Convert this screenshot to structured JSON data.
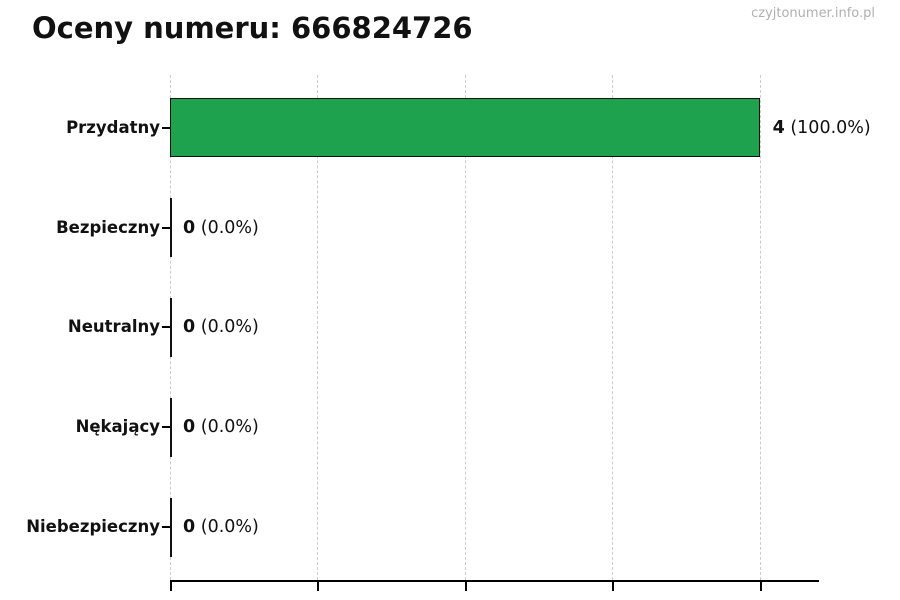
{
  "header": {
    "title": "Oceny numeru: 666824726",
    "watermark": "czyjtonumer.info.pl"
  },
  "chart_data": {
    "type": "bar",
    "orientation": "horizontal",
    "title": "Oceny numeru: 666824726",
    "categories": [
      "Przydatny",
      "Bezpieczny",
      "Neutralny",
      "Nękający",
      "Niebezpieczny"
    ],
    "values": [
      4,
      0,
      0,
      0,
      0
    ],
    "value_labels": [
      {
        "count": "4",
        "pct": "(100.0%)"
      },
      {
        "count": "0",
        "pct": "(0.0%)"
      },
      {
        "count": "0",
        "pct": "(0.0%)"
      },
      {
        "count": "0",
        "pct": "(0.0%)"
      },
      {
        "count": "0",
        "pct": "(0.0%)"
      }
    ],
    "xlabel": "",
    "ylabel": "",
    "xlim": [
      0,
      4.4
    ],
    "x_ticks": [
      0,
      1,
      2,
      3,
      4
    ],
    "x_tick_labels_visible": false,
    "grid": "vertical-dashed",
    "legend": "none",
    "colors": {
      "bar_fill": "#1fa24d",
      "bar_border": "#111111",
      "grid_line": "#cccccc",
      "axis": "#000000",
      "text": "#111111",
      "watermark": "#b0b0b0",
      "background": "#ffffff"
    }
  }
}
